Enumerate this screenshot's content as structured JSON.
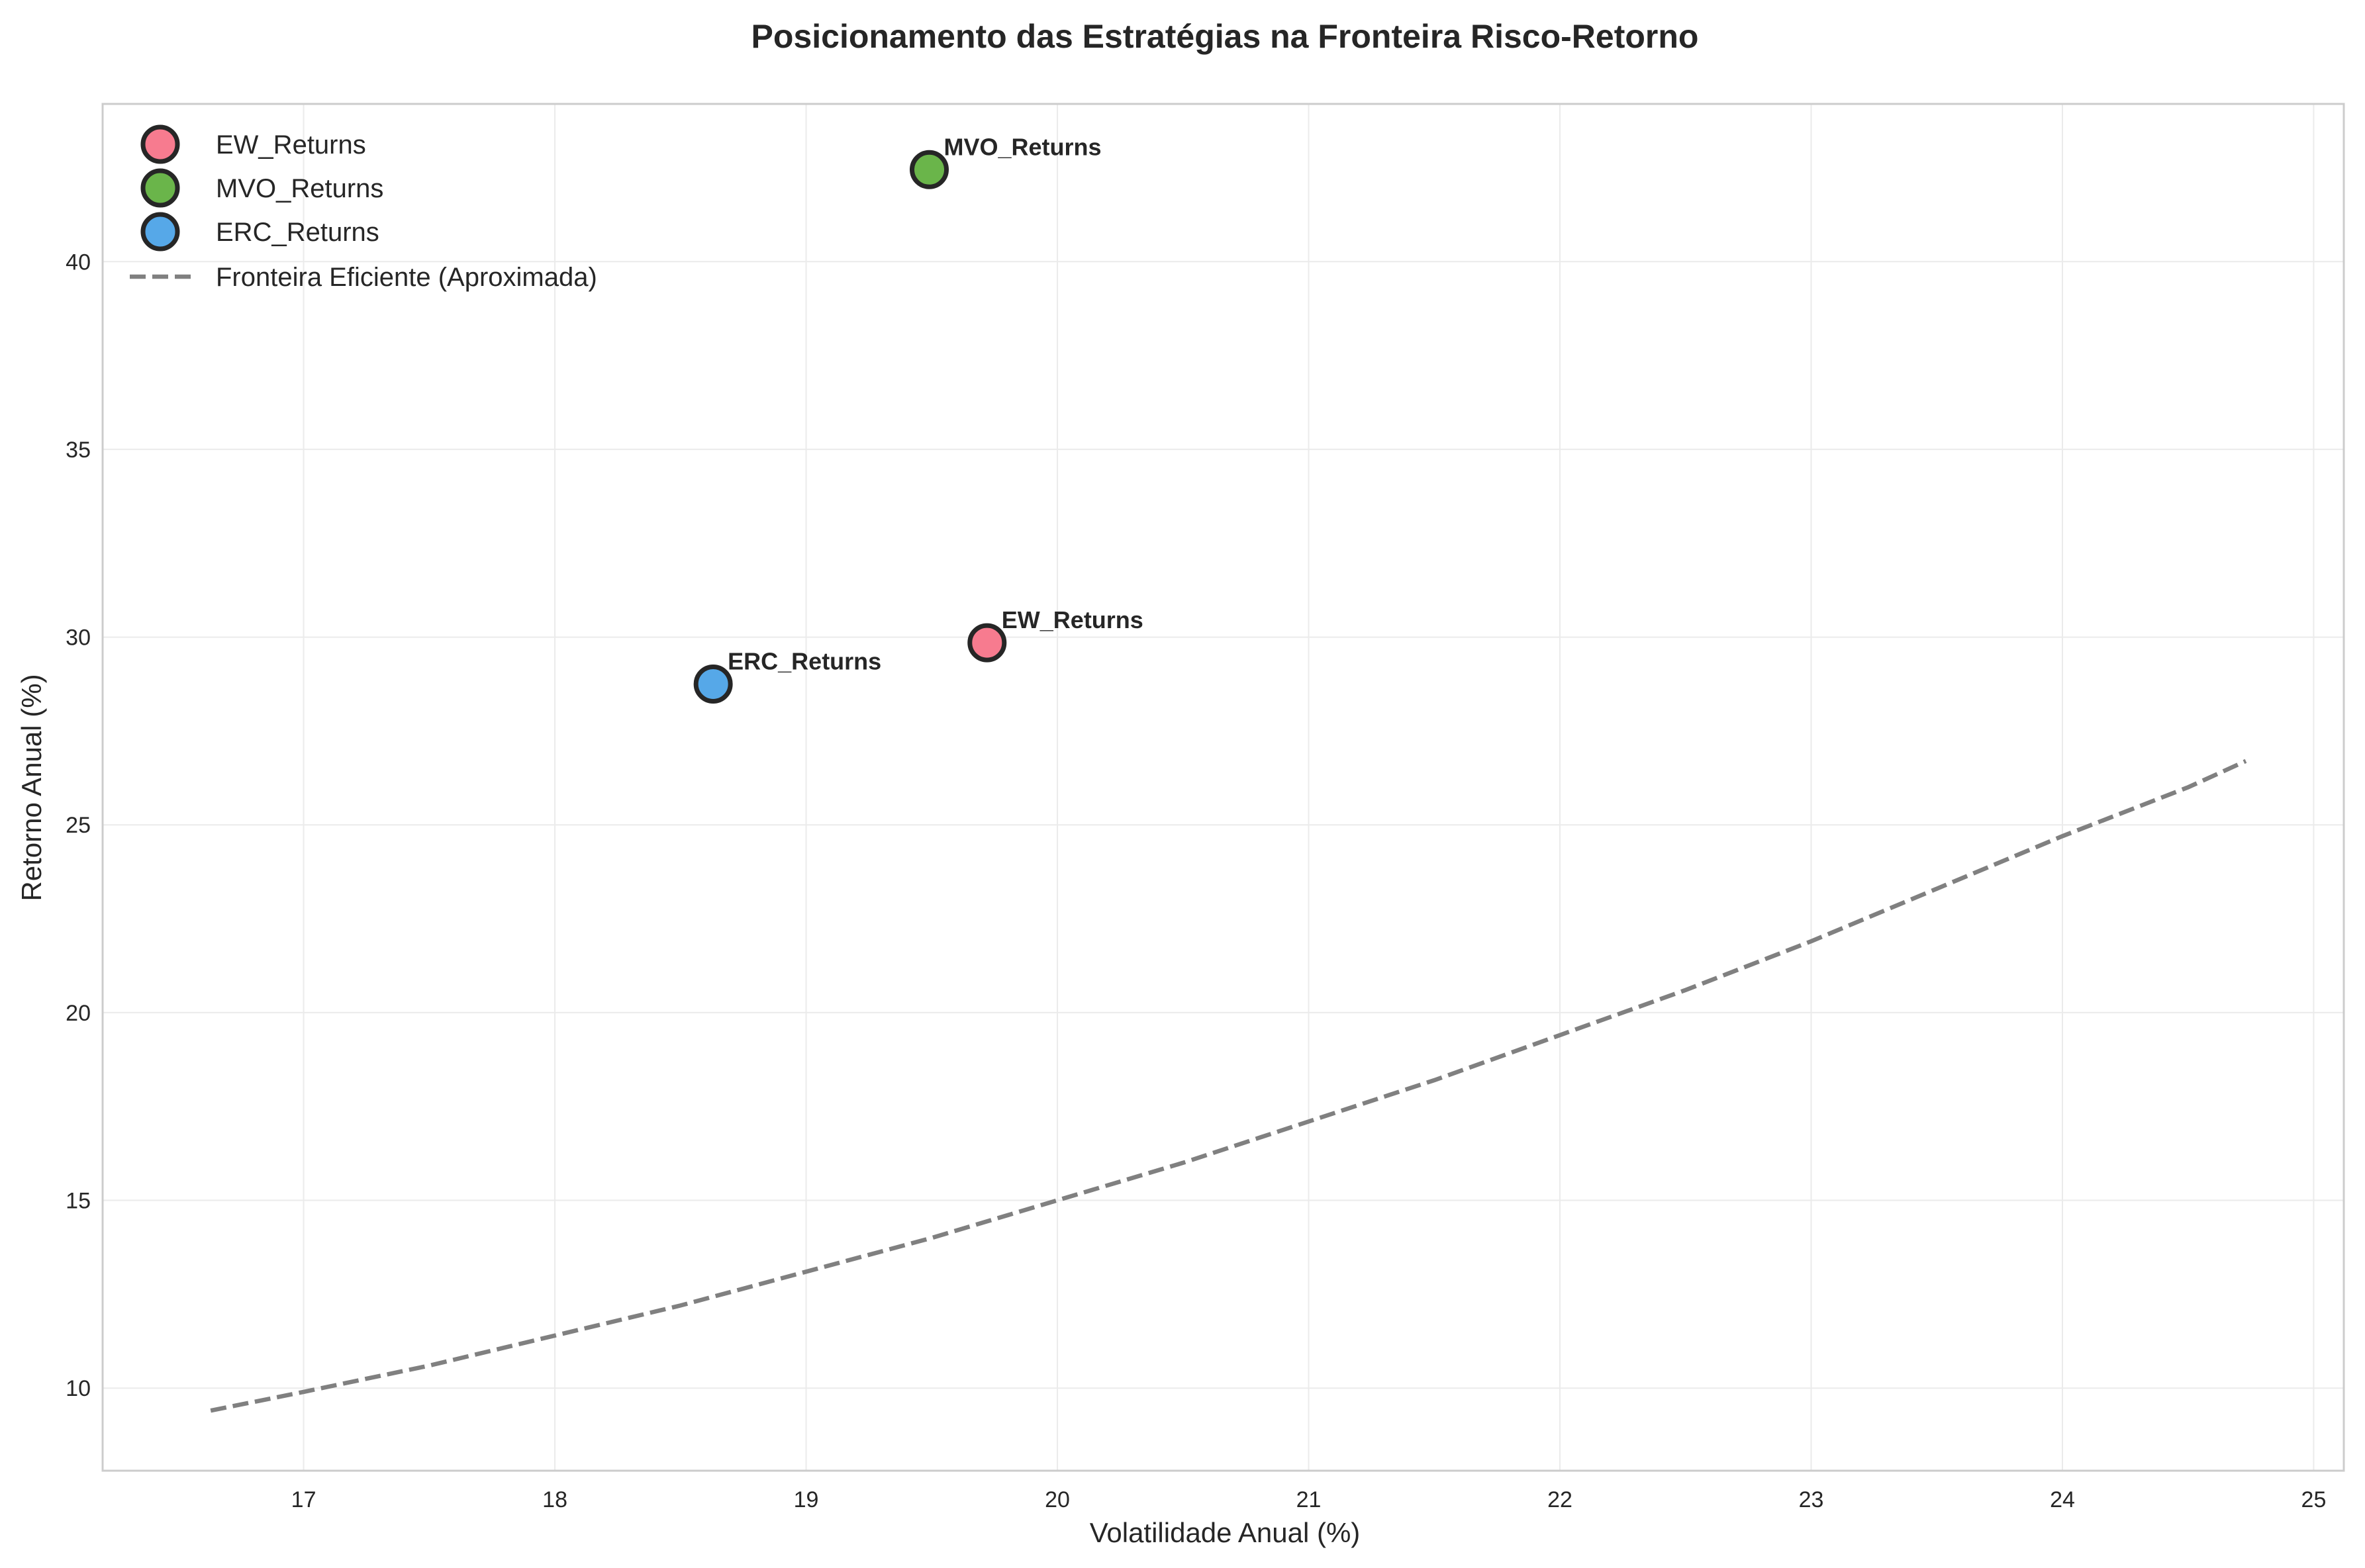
{
  "chart_data": {
    "type": "scatter",
    "title": "Posicionamento das Estratégias na Fronteira Risco-Retorno",
    "xlabel": "Volatilidade Anual (%)",
    "ylabel": "Retorno Anual (%)",
    "xlim": [
      16.2,
      25.12
    ],
    "ylim": [
      7.8,
      44.2
    ],
    "xticks": [
      17,
      18,
      19,
      20,
      21,
      22,
      23,
      24,
      25
    ],
    "yticks": [
      10,
      15,
      20,
      25,
      30,
      35,
      40
    ],
    "grid": true,
    "legend_position": "top-left",
    "points": [
      {
        "name": "EW_Returns",
        "x": 19.72,
        "y": 29.85,
        "color": "#f77b8f"
      },
      {
        "name": "MVO_Returns",
        "x": 19.49,
        "y": 42.45,
        "color": "#6ab54a"
      },
      {
        "name": "ERC_Returns",
        "x": 18.63,
        "y": 28.75,
        "color": "#56a8e8"
      }
    ],
    "frontier": {
      "name": "Fronteira Eficiente (Aproximada)",
      "color": "#808080",
      "style": "dashed",
      "x": [
        16.63,
        17.0,
        17.5,
        18.0,
        18.5,
        19.0,
        19.5,
        20.0,
        20.5,
        21.0,
        21.5,
        22.0,
        22.5,
        23.0,
        23.5,
        24.0,
        24.5,
        24.73
      ],
      "y": [
        9.4,
        9.9,
        10.6,
        11.4,
        12.2,
        13.1,
        14.0,
        15.0,
        16.0,
        17.1,
        18.2,
        19.4,
        20.6,
        21.9,
        23.3,
        24.7,
        26.0,
        26.7
      ]
    }
  }
}
